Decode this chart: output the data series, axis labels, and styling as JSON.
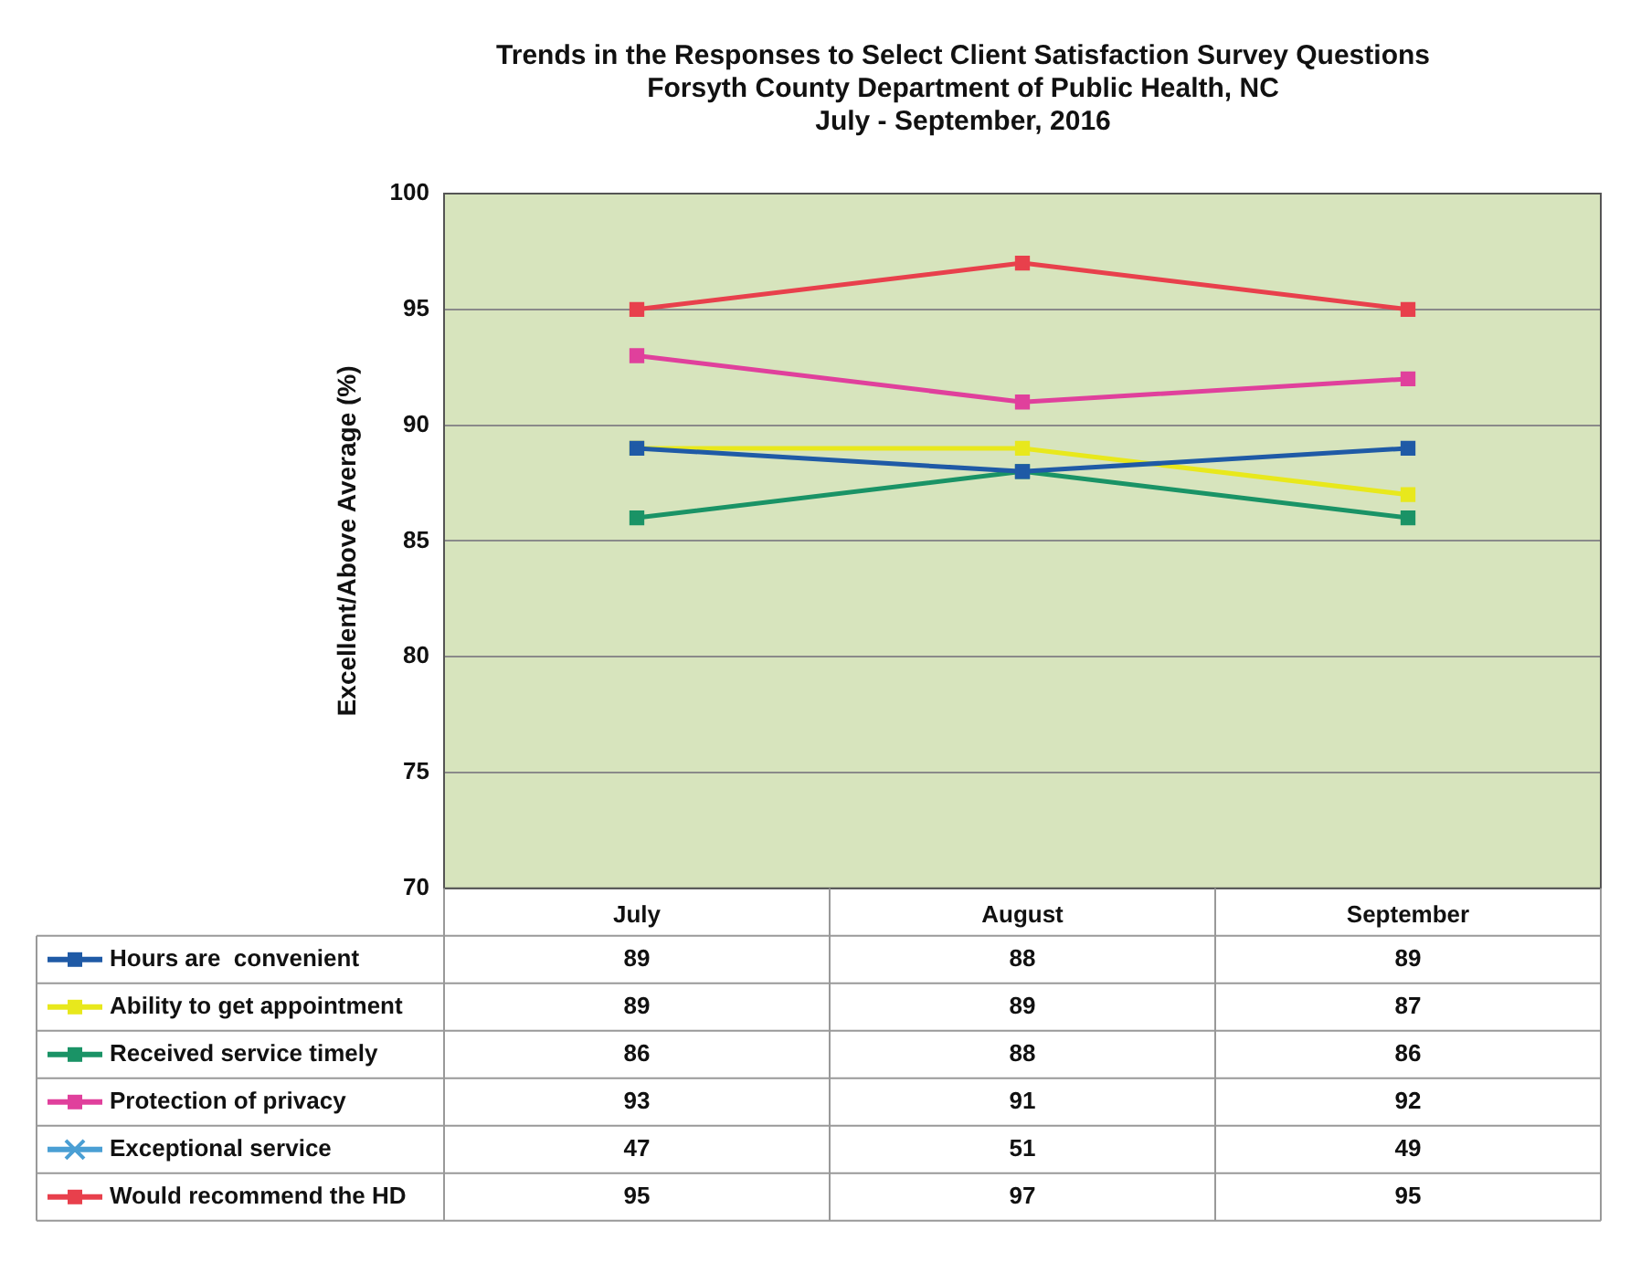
{
  "chart_data": {
    "type": "line",
    "title": [
      "Trends in the Responses to Select Client Satisfaction Survey Questions",
      "Forsyth County Department of Public Health, NC",
      "July - September, 2016"
    ],
    "ylabel": "Excellent/Above Average (%)",
    "categories": [
      "July",
      "August",
      "September"
    ],
    "series": [
      {
        "name": "Hours are  convenient",
        "color": "#1f5aa6",
        "values": [
          89,
          88,
          89
        ]
      },
      {
        "name": "Ability to get appointment",
        "color": "#e8e81c",
        "values": [
          89,
          89,
          87
        ]
      },
      {
        "name": "Received service timely",
        "color": "#1a9366",
        "values": [
          86,
          88,
          86
        ]
      },
      {
        "name": "Protection of privacy",
        "color": "#e0409c",
        "values": [
          93,
          91,
          92
        ]
      },
      {
        "name": "Exceptional service",
        "color": "#4a9fd4",
        "marker": "cross",
        "values": [
          null,
          null,
          null
        ],
        "value_labels": [
          "47",
          "51",
          "49"
        ]
      },
      {
        "name": "Would recommend the HD",
        "color": "#e8404c",
        "values": [
          95,
          97,
          95
        ]
      }
    ],
    "ylim": [
      70,
      100
    ],
    "yticks": [
      70,
      75,
      80,
      85,
      90,
      95,
      100
    ],
    "grid": "y",
    "marker": "square",
    "legend": "bottom",
    "data_labels": true
  }
}
